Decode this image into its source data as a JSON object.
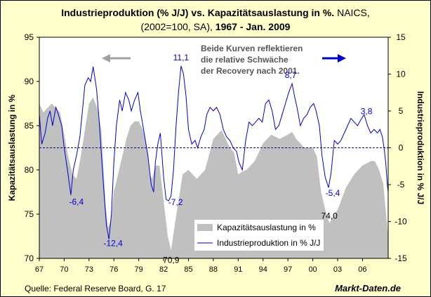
{
  "chart_data": {
    "type": "line",
    "title_parts": [
      {
        "text": "Industrieproduktion (% J/J) vs. Kapazitätsauslastung in %.",
        "bold": true
      },
      {
        "text": " NAICS,",
        "bold": false
      }
    ],
    "subtitle_parts": [
      {
        "text": "(2002=100, SA), ",
        "bold": false
      },
      {
        "text": "1967 - Jan. 2009",
        "bold": true
      }
    ],
    "ylabel_left": "Kapazitätsauslastung in %",
    "ylabel_right": "Industrieproduktion in % J/J",
    "ylim_left": [
      70,
      95
    ],
    "ylim_right": [
      -15,
      15
    ],
    "yticks_left": [
      "95",
      "90",
      "85",
      "80",
      "75",
      "70"
    ],
    "yticks_right": [
      "15",
      "10",
      "5",
      "0",
      "-5",
      "-10",
      "-15"
    ],
    "xlim": [
      1967,
      2009.1
    ],
    "xticks": [
      "67",
      "70",
      "73",
      "76",
      "79",
      "82",
      "85",
      "88",
      "91",
      "94",
      "97",
      "00",
      "03",
      "06"
    ],
    "zero_line": 0,
    "colors": {
      "area": "#c0c0c0",
      "line": "#0000cc",
      "bg": "#ffffcc",
      "plot_bg": "#ffffff",
      "annotation": "#0000cc",
      "grey_arrow": "#a0a0a0"
    },
    "series": [
      {
        "name": "Kapazitätsauslastung in %",
        "type": "area",
        "axis": "left",
        "x": [
          1967.0,
          1967.5,
          1968.0,
          1968.5,
          1969.0,
          1969.5,
          1970.0,
          1970.5,
          1971.0,
          1971.5,
          1972.0,
          1972.5,
          1973.0,
          1973.5,
          1974.0,
          1974.5,
          1975.0,
          1975.3,
          1975.7,
          1976.0,
          1976.5,
          1977.0,
          1977.5,
          1978.0,
          1978.5,
          1979.0,
          1979.5,
          1980.0,
          1980.3,
          1980.6,
          1981.0,
          1981.5,
          1982.0,
          1982.5,
          1982.9,
          1983.3,
          1983.8,
          1984.3,
          1985.0,
          1986.0,
          1987.0,
          1988.0,
          1989.0,
          1990.0,
          1990.5,
          1991.0,
          1991.5,
          1992.0,
          1993.0,
          1994.0,
          1995.0,
          1996.0,
          1997.0,
          1997.5,
          1998.0,
          1999.0,
          2000.0,
          2000.5,
          2001.0,
          2001.5,
          2002.0,
          2003.0,
          2004.0,
          2005.0,
          2006.0,
          2007.0,
          2007.5,
          2008.0,
          2008.5,
          2008.9,
          2009.1
        ],
        "values": [
          87.5,
          86.5,
          87.0,
          87.5,
          87.0,
          86.5,
          84.0,
          81.5,
          79.5,
          79.0,
          81.5,
          84.5,
          87.5,
          88.2,
          87.0,
          84.5,
          76.0,
          73.5,
          74.5,
          77.5,
          79.5,
          81.5,
          83.5,
          85.0,
          85.5,
          85.5,
          84.5,
          82.5,
          79.5,
          79.0,
          80.5,
          80.5,
          76.5,
          72.5,
          70.9,
          73.5,
          76.5,
          79.5,
          80.0,
          79.0,
          80.0,
          83.5,
          84.5,
          82.5,
          82.0,
          79.5,
          79.8,
          80.0,
          81.0,
          83.0,
          84.0,
          83.5,
          84.0,
          84.3,
          83.5,
          82.5,
          82.5,
          81.5,
          77.5,
          75.5,
          74.0,
          75.5,
          78.0,
          79.5,
          80.5,
          81.0,
          81.0,
          80.0,
          78.5,
          74.5,
          72.5
        ]
      },
      {
        "name": "Industrieproduktion in % J/J",
        "type": "line",
        "axis": "right",
        "x": [
          1967.0,
          1967.3,
          1967.7,
          1968.0,
          1968.3,
          1968.6,
          1969.0,
          1969.3,
          1969.7,
          1970.0,
          1970.4,
          1970.8,
          1971.1,
          1971.5,
          1971.9,
          1972.2,
          1972.5,
          1972.9,
          1973.2,
          1973.5,
          1973.9,
          1974.2,
          1974.5,
          1974.8,
          1975.1,
          1975.4,
          1975.7,
          1976.0,
          1976.3,
          1976.7,
          1977.0,
          1977.4,
          1977.8,
          1978.1,
          1978.5,
          1978.9,
          1979.2,
          1979.5,
          1979.8,
          1980.1,
          1980.5,
          1980.8,
          1981.0,
          1981.3,
          1981.6,
          1982.0,
          1982.3,
          1982.6,
          1982.9,
          1983.2,
          1983.5,
          1983.8,
          1984.1,
          1984.4,
          1984.7,
          1985.0,
          1985.4,
          1985.8,
          1986.1,
          1986.5,
          1986.9,
          1987.2,
          1987.6,
          1988.0,
          1988.4,
          1988.8,
          1989.2,
          1989.6,
          1990.0,
          1990.4,
          1990.8,
          1991.1,
          1991.5,
          1991.9,
          1992.3,
          1992.7,
          1993.1,
          1993.5,
          1993.9,
          1994.3,
          1994.7,
          1995.1,
          1995.5,
          1995.9,
          1996.3,
          1996.7,
          1997.1,
          1997.5,
          1997.8,
          1998.1,
          1998.5,
          1998.9,
          1999.3,
          1999.7,
          2000.1,
          2000.4,
          2000.8,
          2001.1,
          2001.5,
          2001.9,
          2002.2,
          2002.6,
          2003.0,
          2003.4,
          2003.8,
          2004.2,
          2004.6,
          2005.0,
          2005.4,
          2005.8,
          2006.2,
          2006.6,
          2007.0,
          2007.4,
          2007.8,
          2008.1,
          2008.4,
          2008.6,
          2008.8,
          2009.0,
          2009.1
        ],
        "values": [
          4.5,
          0.5,
          2.0,
          4.0,
          5.0,
          3.0,
          5.5,
          4.5,
          3.0,
          0.0,
          -3.0,
          -6.4,
          -3.0,
          -1.0,
          1.5,
          5.0,
          8.5,
          9.5,
          9.0,
          11.0,
          8.0,
          4.0,
          -1.0,
          -6.0,
          -10.5,
          -12.4,
          -9.0,
          -2.0,
          3.0,
          6.5,
          5.0,
          7.5,
          6.5,
          5.0,
          6.5,
          7.5,
          5.0,
          3.0,
          1.0,
          -1.0,
          -5.0,
          -6.0,
          -2.0,
          0.5,
          2.0,
          -4.0,
          -7.0,
          -7.2,
          -6.5,
          -3.0,
          3.0,
          7.5,
          11.1,
          10.0,
          7.0,
          2.5,
          0.5,
          1.0,
          0.0,
          1.5,
          2.5,
          4.5,
          5.5,
          5.0,
          5.5,
          4.5,
          2.5,
          1.5,
          1.0,
          0.0,
          -0.5,
          -2.0,
          -3.0,
          1.0,
          3.5,
          3.0,
          3.5,
          4.0,
          3.5,
          6.0,
          6.5,
          5.0,
          2.5,
          3.0,
          4.5,
          6.0,
          7.5,
          8.7,
          7.0,
          5.5,
          3.0,
          4.0,
          4.5,
          5.5,
          6.0,
          5.0,
          3.0,
          -1.0,
          -4.0,
          -5.4,
          -3.5,
          1.0,
          0.5,
          1.0,
          2.0,
          3.0,
          4.0,
          3.5,
          3.0,
          3.8,
          4.5,
          3.0,
          2.0,
          2.5,
          2.0,
          2.5,
          1.5,
          0.0,
          -2.0,
          -5.0,
          -6.0
        ]
      }
    ],
    "legend": {
      "placement": "bottom-center",
      "items": [
        "Kapazitätsauslastung in %",
        "Industrieproduktion in % J/J"
      ]
    },
    "annotations": [
      {
        "text": "-6,4",
        "x": 1970.8,
        "y": -6.4,
        "axis": "right",
        "color": "blue"
      },
      {
        "text": "-12,4",
        "x": 1975.4,
        "y": -12.4,
        "axis": "right",
        "color": "blue"
      },
      {
        "text": "70,9",
        "x": 1982.9,
        "y": 70.9,
        "axis": "left",
        "color": "black"
      },
      {
        "text": "-7,2",
        "x": 1982.6,
        "y": -7.2,
        "axis": "right",
        "color": "blue"
      },
      {
        "text": "11,1",
        "x": 1984.1,
        "y": 11.1,
        "axis": "right",
        "color": "blue"
      },
      {
        "text": "8,7",
        "x": 1997.5,
        "y": 8.7,
        "axis": "right",
        "color": "blue"
      },
      {
        "text": "-5,4",
        "x": 2001.9,
        "y": -5.4,
        "axis": "right",
        "color": "blue"
      },
      {
        "text": "74,0",
        "x": 2002.0,
        "y": 74.0,
        "axis": "left",
        "color": "black"
      },
      {
        "text": "3,8",
        "x": 2005.8,
        "y": 3.8,
        "axis": "right",
        "color": "blue"
      }
    ],
    "note_lines": [
      "Beide Kurven reflektieren",
      "die relative Schwäche",
      "der Recovery nach 2001."
    ],
    "source": "Quelle: Federal Reserve Board, G. 17",
    "brand": "Markt-Daten.de"
  }
}
